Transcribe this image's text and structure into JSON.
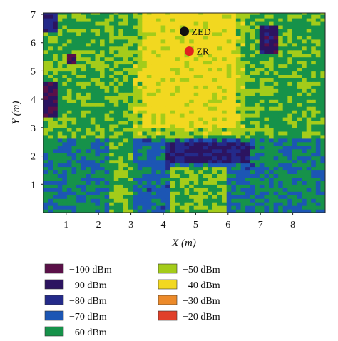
{
  "chart_data": {
    "type": "heatmap",
    "title": "",
    "xlabel": "X (m)",
    "ylabel": "Y (m)",
    "xlim": [
      0.3,
      9.0
    ],
    "ylim": [
      0,
      7.05
    ],
    "x_ticks": [
      "1",
      "2",
      "3",
      "4",
      "5",
      "6",
      "7",
      "8"
    ],
    "y_ticks": [
      "1",
      "2",
      "3",
      "4",
      "5",
      "6",
      "7"
    ],
    "points": [
      {
        "name": "ZED",
        "x": 4.65,
        "y": 6.4,
        "color": "#111111"
      },
      {
        "name": "ZR",
        "x": 4.8,
        "y": 5.7,
        "color": "#e02020"
      }
    ],
    "legend": [
      {
        "label": "−100 dBm",
        "color": "#5a1048"
      },
      {
        "label": "−90 dBm",
        "color": "#2c1460"
      },
      {
        "label": "−80 dBm",
        "color": "#242a8a"
      },
      {
        "label": "−70 dBm",
        "color": "#1c56b4"
      },
      {
        "label": "−60 dBm",
        "color": "#16924a"
      },
      {
        "label": "−50 dBm",
        "color": "#a4cc1a"
      },
      {
        "label": "−40 dBm",
        "color": "#f2d820"
      },
      {
        "label": "−30 dBm",
        "color": "#ec8a2a"
      },
      {
        "label": "−20 dBm",
        "color": "#e0402a"
      }
    ]
  }
}
